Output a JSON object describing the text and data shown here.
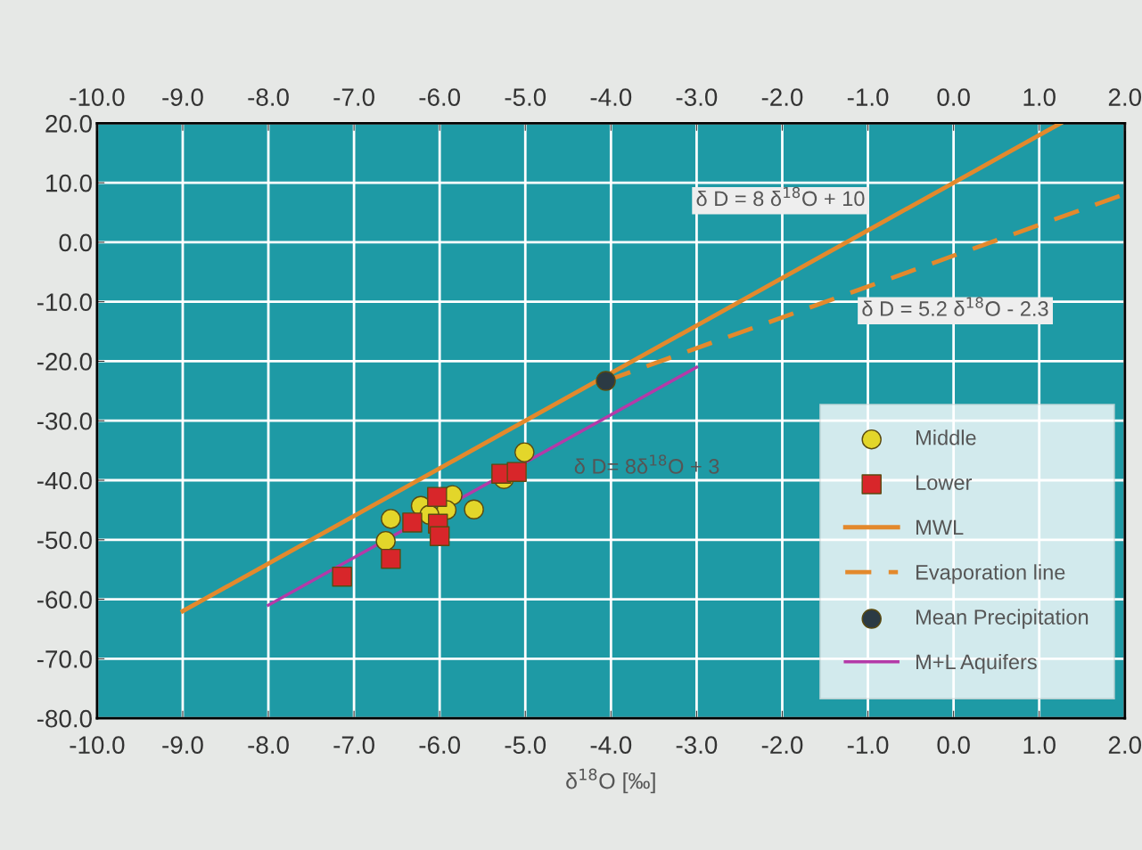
{
  "chart_data": {
    "type": "scatter",
    "xlabel": "δ$^{18}$O [‰]",
    "xlim": [
      -10,
      2
    ],
    "ylim": [
      -80,
      20
    ],
    "xticks": [
      {
        "value": -10,
        "label": "-10.0"
      },
      {
        "value": -9,
        "label": "-9.0"
      },
      {
        "value": -8,
        "label": "-8.0"
      },
      {
        "value": -7,
        "label": "-7.0"
      },
      {
        "value": -6,
        "label": "-6.0"
      },
      {
        "value": -5,
        "label": "-5.0"
      },
      {
        "value": -4,
        "label": "-4.0"
      },
      {
        "value": -3,
        "label": "-3.0"
      },
      {
        "value": -2,
        "label": "-2.0"
      },
      {
        "value": -1,
        "label": "-1.0"
      },
      {
        "value": 0,
        "label": "0.0"
      },
      {
        "value": 1,
        "label": "1.0"
      },
      {
        "value": 2,
        "label": "2.0"
      }
    ],
    "x2lim": [
      -10,
      2
    ],
    "x2ticks": [
      {
        "value": -10,
        "label": "-10.0"
      },
      {
        "value": -9,
        "label": "-9.0"
      },
      {
        "value": -8,
        "label": "-8.0"
      },
      {
        "value": -7,
        "label": "-7.0"
      },
      {
        "value": -6,
        "label": "-6.0"
      },
      {
        "value": -5,
        "label": "-5.0"
      },
      {
        "value": -4,
        "label": "-4.0"
      },
      {
        "value": -3,
        "label": "-3.0"
      },
      {
        "value": -2,
        "label": "-2.0"
      },
      {
        "value": -1,
        "label": "-1.0"
      },
      {
        "value": 0,
        "label": "0.0"
      },
      {
        "value": 1,
        "label": "1.0"
      },
      {
        "value": 2,
        "label": "2.0"
      }
    ],
    "yticks": [
      {
        "value": 20,
        "label": "20.0"
      },
      {
        "value": 10,
        "label": "10.0"
      },
      {
        "value": 0,
        "label": "0.0"
      },
      {
        "value": -10,
        "label": "-10.0"
      },
      {
        "value": -20,
        "label": "-20.0"
      },
      {
        "value": -30,
        "label": "-30.0"
      },
      {
        "value": -40,
        "label": "-40.0"
      },
      {
        "value": -50,
        "label": "-50.0"
      },
      {
        "value": -60,
        "label": "-60.0"
      },
      {
        "value": -70,
        "label": "-70.0"
      },
      {
        "value": -80,
        "label": "-80.0"
      }
    ],
    "grid": true,
    "legend": "bottom right",
    "series": [
      {
        "name": "Middle",
        "marker": "circle",
        "color": "#e3d62a",
        "x": [
          -5.01,
          -5.25,
          -5.85,
          -6.22,
          -5.6,
          -5.92,
          -6.12,
          -6.57,
          -6.63
        ],
        "values": [
          -35.3,
          -39.8,
          -42.5,
          -44.3,
          -44.9,
          -45,
          -45.8,
          -46.5,
          -50.2
        ]
      },
      {
        "name": "Lower",
        "marker": "square",
        "color": "#d8262a",
        "x": [
          -7.14,
          -6.57,
          -6.32,
          -6.03,
          -6.02,
          -6.0,
          -5.28,
          -5.1
        ],
        "values": [
          -56.2,
          -53.2,
          -47.1,
          -42.8,
          -47.3,
          -49.4,
          -38.9,
          -38.6
        ]
      },
      {
        "name": "MWL",
        "type": "line",
        "line_style": "solid",
        "color": "#e3892c",
        "x": [
          -9,
          1.25
        ],
        "values": [
          -62,
          20
        ]
      },
      {
        "name": "Evaporation line",
        "type": "line",
        "line_style": "dashed",
        "color": "#e3892c",
        "x": [
          -4.06,
          2
        ],
        "values": [
          -23.3,
          8.1
        ]
      },
      {
        "name": "Mean Precipitation",
        "marker": "circle",
        "color": "#2b3a44",
        "x": [
          -4.06
        ],
        "values": [
          -23.3
        ]
      },
      {
        "name": "M+L Aquifers",
        "type": "line",
        "line_style": "solid",
        "color": "#b43aa8",
        "x": [
          -8,
          -3
        ],
        "values": [
          -61,
          -21
        ]
      }
    ],
    "annotations": [
      "δ D = 8 δ$^{18}$O + 10",
      "δ D = 5.2 δ$^{18}$O - 2.3",
      "δ D= 8δ$^{18}$O + 3"
    ]
  }
}
